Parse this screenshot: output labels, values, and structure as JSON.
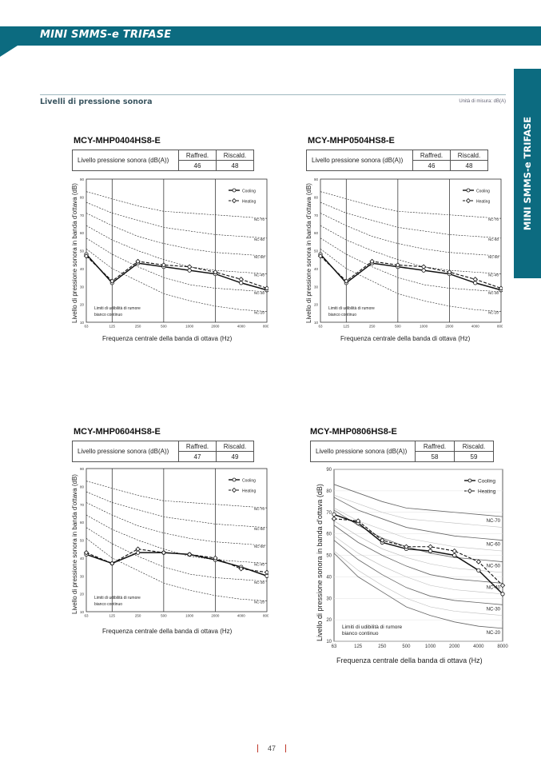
{
  "header": {
    "title": "MINI SMMS-e TRIFASE",
    "side_tab": "MINI SMMS-e TRIFASE"
  },
  "section": {
    "title": "Livelli di pressione sonora",
    "units": "Unità di misura: dB(A)"
  },
  "table_headers": {
    "label": "Livello pressione sonora (dB(A))",
    "cooling": "Raffred.",
    "heating": "Riscald."
  },
  "axis": {
    "xlabel": "Frequenza centrale della banda di ottava (Hz)",
    "ylabel": "Livello di pressione sonora in banda d'ottava (dB)",
    "x_ticks": [
      "63",
      "125",
      "250",
      "500",
      "1000",
      "2000",
      "4000",
      "8000"
    ],
    "y_ticks": [
      "10",
      "20",
      "30",
      "40",
      "50",
      "60",
      "70",
      "80",
      "90"
    ],
    "legend_cooling": "Cooling",
    "legend_heating": "Heating",
    "nc_labels": [
      "NC-70",
      "NC-60",
      "NC-50",
      "NC-40",
      "NC-30",
      "NC-20"
    ],
    "threshold_note": [
      "Limiti di udibilità di rumore",
      "bianco continuo"
    ]
  },
  "units": [
    {
      "model": "MCY-MHP0404HS8-E",
      "cooling": "46",
      "heating": "48"
    },
    {
      "model": "MCY-MHP0504HS8-E",
      "cooling": "46",
      "heating": "48"
    },
    {
      "model": "MCY-MHP0604HS8-E",
      "cooling": "47",
      "heating": "49"
    },
    {
      "model": "MCY-MHP0806HS8-E",
      "cooling": "58",
      "heating": "59"
    }
  ],
  "chart_data": [
    {
      "type": "line",
      "title": "MCY-MHP0404HS8-E",
      "x": [
        63,
        125,
        250,
        500,
        1000,
        2000,
        4000,
        8000
      ],
      "series": [
        {
          "name": "Cooling",
          "values": [
            48,
            32,
            43,
            41,
            39,
            37,
            32,
            28
          ]
        },
        {
          "name": "Heating",
          "values": [
            47,
            33,
            44,
            42,
            41,
            38,
            34,
            29
          ]
        }
      ],
      "xlabel": "Frequenza centrale della banda di ottava (Hz)",
      "ylabel": "Livello di pressione sonora in banda d'ottava (dB)",
      "ylim": [
        10,
        90
      ]
    },
    {
      "type": "line",
      "title": "MCY-MHP0504HS8-E",
      "x": [
        63,
        125,
        250,
        500,
        1000,
        2000,
        4000,
        8000
      ],
      "series": [
        {
          "name": "Cooling",
          "values": [
            48,
            32,
            43,
            41,
            39,
            37,
            32,
            28
          ]
        },
        {
          "name": "Heating",
          "values": [
            47,
            33,
            44,
            42,
            41,
            38,
            34,
            29
          ]
        }
      ],
      "xlabel": "Frequenza centrale della banda di ottava (Hz)",
      "ylabel": "Livello di pressione sonora in banda d'ottava (dB)",
      "ylim": [
        10,
        90
      ]
    },
    {
      "type": "line",
      "title": "MCY-MHP0604HS8-E",
      "x": [
        63,
        125,
        250,
        500,
        1000,
        2000,
        4000,
        8000
      ],
      "series": [
        {
          "name": "Cooling",
          "values": [
            42,
            37,
            43,
            43,
            42,
            39,
            35,
            30
          ]
        },
        {
          "name": "Heating",
          "values": [
            43,
            37,
            45,
            43,
            42,
            40,
            34,
            32
          ]
        }
      ],
      "xlabel": "Frequenza centrale della banda di ottava (Hz)",
      "ylabel": "Livello di pressione sonora in banda d'ottava (dB)",
      "ylim": [
        10,
        90
      ]
    },
    {
      "type": "line",
      "title": "MCY-MHP0806HS8-E",
      "x": [
        63,
        125,
        250,
        500,
        1000,
        2000,
        4000,
        8000
      ],
      "series": [
        {
          "name": "Cooling",
          "values": [
            69,
            65,
            56,
            53,
            52,
            50,
            43,
            32
          ]
        },
        {
          "name": "Heating",
          "values": [
            67,
            66,
            57,
            54,
            54,
            52,
            47,
            36
          ]
        }
      ],
      "xlabel": "Frequenza centrale della banda di ottava (Hz)",
      "ylabel": "Livello di pressione sonora in banda d'ottava (dB)",
      "ylim": [
        10,
        90
      ]
    }
  ],
  "nc_curves": {
    "NC-70": [
      83,
      79,
      75,
      72,
      71,
      70,
      69,
      68
    ],
    "NC-60": [
      77,
      71,
      67,
      63,
      61,
      59,
      58,
      57
    ],
    "NC-50": [
      71,
      64,
      58,
      54,
      51,
      49,
      48,
      47
    ],
    "NC-40": [
      64,
      56,
      50,
      45,
      41,
      39,
      38,
      37
    ],
    "NC-30": [
      57,
      48,
      41,
      35,
      31,
      29,
      28,
      27
    ],
    "NC-20": [
      51,
      40,
      33,
      26,
      22,
      19,
      17,
      16
    ]
  },
  "page": {
    "number": "47"
  }
}
